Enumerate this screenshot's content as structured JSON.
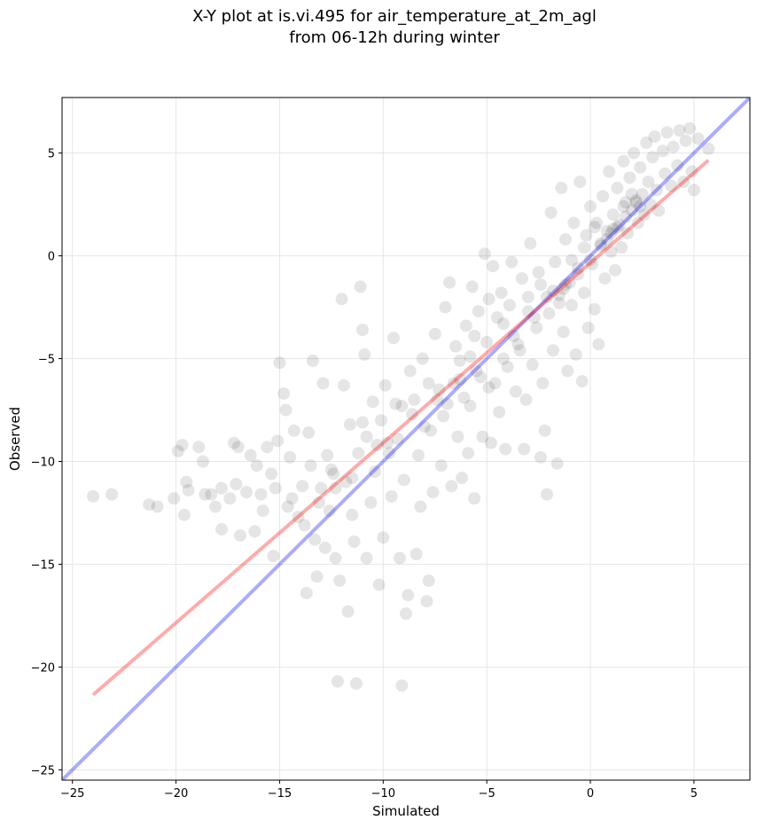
{
  "chart_data": {
    "type": "scatter",
    "title_line1": "X-Y plot at is.vi.495 for air_temperature_at_2m_agl",
    "title_line2": "from 06-12h during winter",
    "xlabel": "Simulated",
    "ylabel": "Observed",
    "xlim": [
      -25.5,
      7.7
    ],
    "ylim": [
      -25.5,
      7.7
    ],
    "xticks": [
      -25,
      -20,
      -15,
      -10,
      -5,
      0,
      5
    ],
    "yticks": [
      -25,
      -20,
      -15,
      -10,
      -5,
      0,
      5
    ],
    "xtick_labels": [
      "−25",
      "−20",
      "−15",
      "−10",
      "−5",
      "0",
      "5"
    ],
    "ytick_labels": [
      "−25",
      "−20",
      "−15",
      "−10",
      "−5",
      "0",
      "5"
    ],
    "grid": true,
    "point_color": "#000000",
    "point_alpha": 0.1,
    "reference_line": {
      "color": "#0000ff",
      "x": [
        -25.5,
        7.7
      ],
      "y": [
        -25.5,
        7.7
      ]
    },
    "regression_line": {
      "color": "#ff0000",
      "x": [
        -24.0,
        5.7
      ],
      "y": [
        -21.35,
        4.65
      ]
    },
    "points": [
      [
        -24,
        -11.7
      ],
      [
        -23.1,
        -11.6
      ],
      [
        -21.3,
        -12.1
      ],
      [
        -20.9,
        -12.2
      ],
      [
        -20.1,
        -11.8
      ],
      [
        -19.9,
        -9.5
      ],
      [
        -19.7,
        -9.2
      ],
      [
        -19.5,
        -11
      ],
      [
        -19.4,
        -11.4
      ],
      [
        -19.6,
        -12.6
      ],
      [
        -18.9,
        -9.3
      ],
      [
        -18.7,
        -10
      ],
      [
        -18.6,
        -11.6
      ],
      [
        -18.3,
        -11.6
      ],
      [
        -18.1,
        -12.2
      ],
      [
        -17.8,
        -11.3
      ],
      [
        -17.8,
        -13.3
      ],
      [
        -17.4,
        -11.8
      ],
      [
        -17.2,
        -9.1
      ],
      [
        -17.0,
        -9.3
      ],
      [
        -17.1,
        -11.1
      ],
      [
        -16.9,
        -13.6
      ],
      [
        -16.6,
        -11.5
      ],
      [
        -16.4,
        -9.7
      ],
      [
        -16.2,
        -13.4
      ],
      [
        -16.1,
        -10.2
      ],
      [
        -15.9,
        -11.6
      ],
      [
        -15.8,
        -12.4
      ],
      [
        -15.6,
        -9.3
      ],
      [
        -15.4,
        -10.6
      ],
      [
        -15.3,
        -14.6
      ],
      [
        -15.2,
        -11.3
      ],
      [
        -15.1,
        -9.0
      ],
      [
        -15.0,
        -5.2
      ],
      [
        -14.8,
        -6.7
      ],
      [
        -14.7,
        -7.5
      ],
      [
        -14.6,
        -12.2
      ],
      [
        -14.5,
        -9.8
      ],
      [
        -14.4,
        -11.8
      ],
      [
        -14.3,
        -8.5
      ],
      [
        -14.1,
        -12.7
      ],
      [
        -13.9,
        -11.2
      ],
      [
        -13.8,
        -13.1
      ],
      [
        -13.7,
        -16.4
      ],
      [
        -13.6,
        -8.6
      ],
      [
        -13.5,
        -10.2
      ],
      [
        -13.4,
        -5.1
      ],
      [
        -13.3,
        -13.8
      ],
      [
        -13.2,
        -15.6
      ],
      [
        -13.0,
        -11.3
      ],
      [
        -12.9,
        -6.2
      ],
      [
        -12.8,
        -14.2
      ],
      [
        -12.7,
        -9.7
      ],
      [
        -12.6,
        -12.4
      ],
      [
        -12.4,
        -10.6
      ],
      [
        -12.3,
        -14.7
      ],
      [
        -12.2,
        -20.7
      ],
      [
        -12.1,
        -15.8
      ],
      [
        -12.0,
        -2.1
      ],
      [
        -11.9,
        -6.3
      ],
      [
        -11.8,
        -11.0
      ],
      [
        -11.7,
        -17.3
      ],
      [
        -11.6,
        -8.2
      ],
      [
        -11.5,
        -12.6
      ],
      [
        -11.4,
        -13.9
      ],
      [
        -11.3,
        -20.8
      ],
      [
        -11.2,
        -9.6
      ],
      [
        -11.1,
        -1.5
      ],
      [
        -11.0,
        -3.6
      ],
      [
        -10.9,
        -4.8
      ],
      [
        -10.8,
        -14.7
      ],
      [
        -10.6,
        -12.0
      ],
      [
        -10.5,
        -7.1
      ],
      [
        -10.4,
        -10.5
      ],
      [
        -10.2,
        -16.0
      ],
      [
        -10.1,
        -8.0
      ],
      [
        -10.0,
        -13.7
      ],
      [
        -9.9,
        -6.3
      ],
      [
        -9.8,
        -9.1
      ],
      [
        -9.6,
        -11.7
      ],
      [
        -9.5,
        -4.0
      ],
      [
        -9.4,
        -7.2
      ],
      [
        -9.2,
        -14.7
      ],
      [
        -9.1,
        -20.9
      ],
      [
        -9.0,
        -10.9
      ],
      [
        -8.9,
        -17.4
      ],
      [
        -8.8,
        -16.5
      ],
      [
        -8.7,
        -5.6
      ],
      [
        -8.6,
        -7.7
      ],
      [
        -8.4,
        -14.5
      ],
      [
        -8.3,
        -9.7
      ],
      [
        -8.2,
        -12.2
      ],
      [
        -8.1,
        -5.0
      ],
      [
        -7.9,
        -16.8
      ],
      [
        -7.8,
        -15.8
      ],
      [
        -7.7,
        -8.5
      ],
      [
        -7.6,
        -11.5
      ],
      [
        -7.5,
        -3.8
      ],
      [
        -7.3,
        -6.5
      ],
      [
        -7.2,
        -10.2
      ],
      [
        -7.0,
        -2.5
      ],
      [
        -6.9,
        -7.2
      ],
      [
        -6.8,
        -1.3
      ],
      [
        -6.7,
        -11.2
      ],
      [
        -6.5,
        -4.4
      ],
      [
        -6.4,
        -8.8
      ],
      [
        -6.3,
        -6.0
      ],
      [
        -6.2,
        -10.8
      ],
      [
        -6.0,
        -3.4
      ],
      [
        -5.9,
        -9.6
      ],
      [
        -5.8,
        -7.3
      ],
      [
        -5.7,
        -1.5
      ],
      [
        -5.6,
        -11.8
      ],
      [
        -5.5,
        -5.6
      ],
      [
        -5.4,
        -2.7
      ],
      [
        -5.2,
        -8.8
      ],
      [
        -5.1,
        0.1
      ],
      [
        -5.0,
        -4.2
      ],
      [
        -4.9,
        -6.4
      ],
      [
        -4.8,
        -9.1
      ],
      [
        -4.7,
        -0.5
      ],
      [
        -4.5,
        -3.0
      ],
      [
        -4.4,
        -7.6
      ],
      [
        -4.3,
        -1.8
      ],
      [
        -4.2,
        -5.0
      ],
      [
        -4.1,
        -9.4
      ],
      [
        -3.9,
        -2.4
      ],
      [
        -3.8,
        -0.3
      ],
      [
        -3.6,
        -6.6
      ],
      [
        -3.5,
        -4.3
      ],
      [
        -3.3,
        -1.1
      ],
      [
        -3.2,
        -9.4
      ],
      [
        -3.1,
        -7.0
      ],
      [
        -3.0,
        -2.0
      ],
      [
        -2.9,
        0.6
      ],
      [
        -2.8,
        -5.3
      ],
      [
        -2.6,
        -3.5
      ],
      [
        -2.5,
        -0.8
      ],
      [
        -2.4,
        -9.8
      ],
      [
        -2.3,
        -6.2
      ],
      [
        -2.2,
        -8.5
      ],
      [
        -2.1,
        -11.6
      ],
      [
        -2.0,
        -2.8
      ],
      [
        -1.9,
        2.1
      ],
      [
        -1.8,
        -4.6
      ],
      [
        -1.7,
        -0.3
      ],
      [
        -1.6,
        -10.1
      ],
      [
        -1.5,
        -1.9
      ],
      [
        -1.4,
        3.3
      ],
      [
        -1.3,
        -3.7
      ],
      [
        -1.2,
        0.8
      ],
      [
        -1.1,
        -5.6
      ],
      [
        -1.0,
        -1.3
      ],
      [
        -0.9,
        -2.4
      ],
      [
        -0.8,
        1.6
      ],
      [
        -0.7,
        -4.8
      ],
      [
        -0.6,
        -0.6
      ],
      [
        -0.5,
        3.6
      ],
      [
        -0.4,
        -6.1
      ],
      [
        -0.3,
        -1.8
      ],
      [
        -0.2,
        1.0
      ],
      [
        -0.1,
        -3.5
      ],
      [
        0.0,
        2.4
      ],
      [
        0.1,
        -0.4
      ],
      [
        0.2,
        -2.6
      ],
      [
        0.3,
        1.6
      ],
      [
        0.4,
        -4.3
      ],
      [
        0.5,
        0.6
      ],
      [
        0.6,
        2.9
      ],
      [
        0.7,
        -1.1
      ],
      [
        0.8,
        1.2
      ],
      [
        0.9,
        4.1
      ],
      [
        1.0,
        0.2
      ],
      [
        1.1,
        2.0
      ],
      [
        1.2,
        -0.7
      ],
      [
        1.3,
        3.3
      ],
      [
        1.4,
        1.5
      ],
      [
        1.5,
        0.4
      ],
      [
        1.6,
        4.6
      ],
      [
        1.7,
        2.6
      ],
      [
        1.8,
        1.1
      ],
      [
        1.9,
        3.8
      ],
      [
        2.0,
        2.2
      ],
      [
        2.1,
        5.0
      ],
      [
        2.2,
        2.7
      ],
      [
        2.3,
        1.6
      ],
      [
        2.4,
        4.3
      ],
      [
        2.5,
        3.0
      ],
      [
        2.6,
        2.0
      ],
      [
        2.7,
        5.5
      ],
      [
        2.8,
        3.6
      ],
      [
        2.9,
        2.5
      ],
      [
        3.0,
        4.8
      ],
      [
        3.1,
        5.8
      ],
      [
        3.2,
        3.2
      ],
      [
        3.3,
        2.2
      ],
      [
        3.5,
        5.1
      ],
      [
        3.6,
        4.0
      ],
      [
        3.7,
        6.0
      ],
      [
        3.9,
        3.4
      ],
      [
        4.0,
        5.3
      ],
      [
        4.2,
        4.4
      ],
      [
        4.3,
        6.1
      ],
      [
        4.5,
        3.6
      ],
      [
        4.6,
        5.6
      ],
      [
        4.8,
        6.2
      ],
      [
        4.9,
        4.1
      ],
      [
        5.0,
        3.2
      ],
      [
        5.2,
        5.7
      ],
      [
        5.7,
        5.2
      ],
      [
        -4.6,
        -6.2
      ],
      [
        -4.0,
        -5.4
      ],
      [
        -3.4,
        -4.6
      ],
      [
        -2.7,
        -3.0
      ],
      [
        -1.8,
        -1.7
      ],
      [
        -1.2,
        -1.4
      ],
      [
        -0.6,
        -0.9
      ],
      [
        0.0,
        -0.2
      ],
      [
        0.5,
        0.5
      ],
      [
        1.0,
        1.1
      ],
      [
        1.3,
        1.4
      ],
      [
        1.7,
        1.9
      ],
      [
        2.2,
        2.6
      ],
      [
        2.4,
        2.4
      ],
      [
        0.8,
        0.8
      ],
      [
        1.1,
        1.3
      ],
      [
        -1.3,
        -1.6
      ],
      [
        -2.1,
        -2.0
      ],
      [
        -3.7,
        -3.9
      ],
      [
        -5.3,
        -5.9
      ],
      [
        -6.1,
        -6.9
      ],
      [
        -7.1,
        -7.8
      ],
      [
        -8.0,
        -8.3
      ],
      [
        -9.3,
        -8.9
      ],
      [
        -10.3,
        -9.2
      ],
      [
        -11.0,
        -8.1
      ],
      [
        -12.5,
        -10.4
      ],
      [
        -9.7,
        -9.6
      ],
      [
        -7.4,
        -7.0
      ],
      [
        -6.6,
        -6.2
      ],
      [
        -5.8,
        -4.9
      ],
      [
        -4.2,
        -3.3
      ],
      [
        -3.0,
        -2.7
      ],
      [
        -1.5,
        -2.3
      ],
      [
        -0.3,
        0.4
      ],
      [
        1.6,
        2.4
      ],
      [
        2.0,
        3.0
      ],
      [
        -0.9,
        -0.2
      ],
      [
        0.2,
        1.4
      ],
      [
        -2.4,
        -1.4
      ],
      [
        -4.9,
        -2.1
      ],
      [
        -5.6,
        -3.9
      ],
      [
        -6.3,
        -5.1
      ],
      [
        -7.8,
        -6.2
      ],
      [
        -8.5,
        -7.0
      ],
      [
        -9.1,
        -7.3
      ],
      [
        -10.8,
        -8.8
      ],
      [
        -11.5,
        -10.8
      ],
      [
        -12.3,
        -11.3
      ],
      [
        -13.1,
        -12.0
      ]
    ]
  }
}
